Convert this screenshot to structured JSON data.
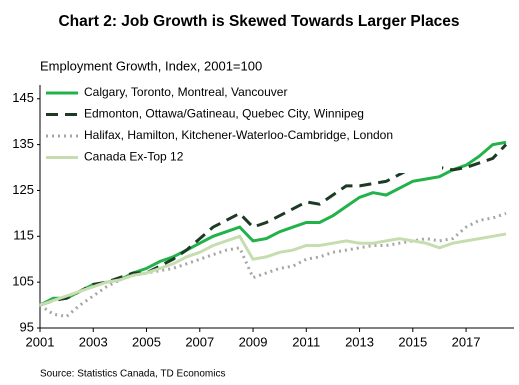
{
  "chart_data": {
    "type": "line",
    "title": "Chart 2: Job Growth is Skewed Towards Larger Places",
    "subtitle": "Employment Growth, Index, 2001=100",
    "source": "Source: Statistics Canada, TD Economics",
    "x": [
      2001,
      2001.5,
      2002,
      2002.5,
      2003,
      2003.5,
      2004,
      2004.5,
      2005,
      2005.5,
      2006,
      2006.5,
      2007,
      2007.5,
      2008,
      2008.5,
      2009,
      2009.5,
      2010,
      2010.5,
      2011,
      2011.5,
      2012,
      2012.5,
      2013,
      2013.5,
      2014,
      2014.5,
      2015,
      2015.5,
      2016,
      2016.5,
      2017,
      2017.5,
      2018,
      2018.5
    ],
    "series": [
      {
        "name": "Calgary, Toronto, Montreal, Vancouver",
        "color": "#21b24a",
        "dash": "solid",
        "values": [
          100,
          101.5,
          101.5,
          103,
          104.5,
          105,
          105.5,
          107,
          108,
          109.5,
          110.5,
          112,
          113.5,
          115,
          116,
          117,
          114,
          114.5,
          116,
          117,
          118,
          118,
          119.5,
          121.5,
          123.5,
          124.5,
          124,
          125.5,
          127,
          127.5,
          128,
          129.5,
          130.5,
          132.5,
          135,
          135.5
        ]
      },
      {
        "name": "Edmonton, Ottawa/Gatineau, Quebec City, Winnipeg",
        "color": "#1d3b24",
        "dash": "dashed",
        "values": [
          100,
          101,
          101.5,
          103,
          104.5,
          105,
          106,
          107,
          107,
          108.5,
          110,
          112,
          114.5,
          117,
          118.5,
          120,
          117,
          118,
          119.5,
          121,
          122.5,
          122,
          124,
          126,
          126,
          126.5,
          127,
          128.5,
          130,
          130.5,
          130,
          129.5,
          130,
          131,
          132,
          135
        ]
      },
      {
        "name": "Halifax, Hamilton, Kitchener-Waterloo-Cambridge, London",
        "color": "#a6a6a6",
        "dash": "dotted",
        "values": [
          100,
          98,
          97.5,
          100,
          102,
          104,
          105.5,
          106.5,
          107,
          107.5,
          108,
          109,
          110,
          111,
          112,
          112.5,
          106,
          107,
          108,
          108.5,
          110,
          110.5,
          111.5,
          112,
          112.5,
          113,
          113,
          113.5,
          114,
          114.5,
          114,
          114.5,
          117,
          118.5,
          119,
          120
        ]
      },
      {
        "name": "Canada Ex-Top 12",
        "color": "#c6ddb0",
        "dash": "solid",
        "values": [
          100,
          101,
          102,
          103,
          104,
          105,
          105.5,
          106.5,
          107,
          108,
          109,
          110.5,
          111.5,
          113,
          114,
          115,
          110,
          110.5,
          111.5,
          112,
          113,
          113,
          113.5,
          114,
          113.5,
          113.5,
          114,
          114.5,
          114,
          113.5,
          112.5,
          113.5,
          114,
          114.5,
          115,
          115.5
        ]
      }
    ],
    "xlim": [
      2001,
      2018.8
    ],
    "xticks": [
      2001,
      2003,
      2005,
      2007,
      2009,
      2011,
      2013,
      2015,
      2017
    ],
    "ylim": [
      95,
      148
    ],
    "yticks": [
      95,
      105,
      115,
      125,
      135,
      145
    ],
    "grid": false,
    "legend": "upper-left"
  }
}
